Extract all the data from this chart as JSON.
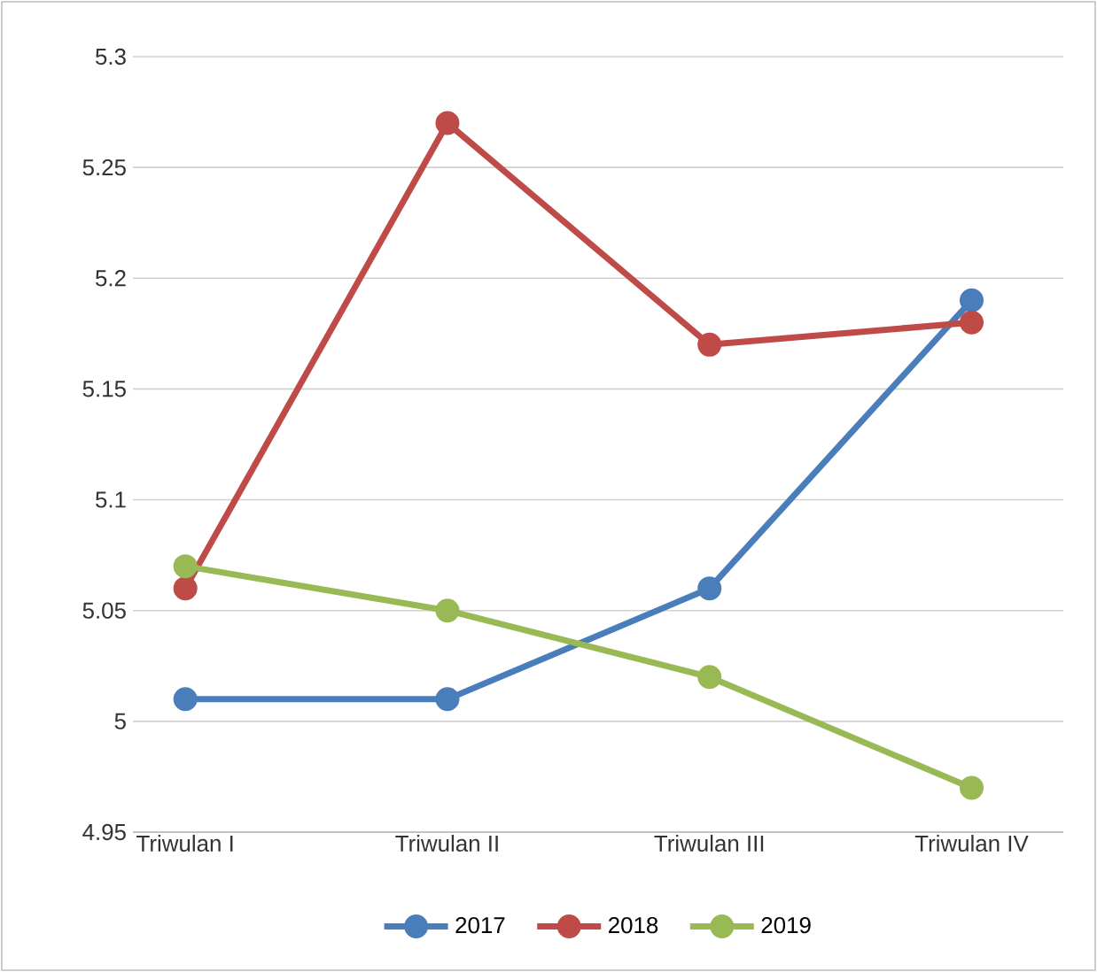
{
  "chart_data": {
    "type": "line",
    "categories": [
      "Triwulan I",
      "Triwulan II",
      "Triwulan III",
      "Triwulan IV"
    ],
    "series": [
      {
        "name": "2017",
        "color": "#4a7ebb",
        "values": [
          5.01,
          5.01,
          5.06,
          5.19
        ]
      },
      {
        "name": "2018",
        "color": "#be4b48",
        "values": [
          5.06,
          5.27,
          5.17,
          5.18
        ]
      },
      {
        "name": "2019",
        "color": "#98b954",
        "values": [
          5.07,
          5.05,
          5.02,
          4.97
        ]
      }
    ],
    "ylim": [
      4.95,
      5.3
    ],
    "yticks": [
      4.95,
      5,
      5.05,
      5.1,
      5.15,
      5.2,
      5.25,
      5.3
    ],
    "grid": "y",
    "legend": "bottom",
    "marker": "circle",
    "line_style": "solid"
  }
}
